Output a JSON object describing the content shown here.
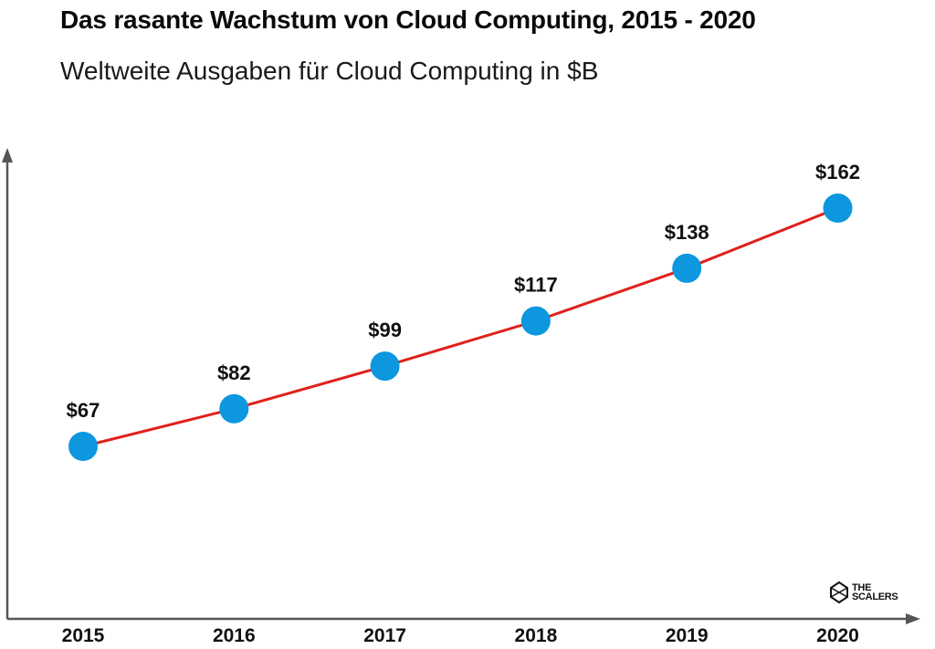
{
  "title": "Das rasante Wachstum von Cloud Computing, 2015 - 2020",
  "subtitle": "Weltweite Ausgaben für Cloud Computing  in $B",
  "logo": {
    "line1": "THE",
    "line2": "SCALERS"
  },
  "colors": {
    "line": "#e0201b",
    "marker": "#0c97df",
    "axis": "#555555"
  },
  "chart_data": {
    "type": "line",
    "title": "Das rasante Wachstum von Cloud Computing, 2015 - 2020",
    "subtitle": "Weltweite Ausgaben für Cloud Computing  in $B",
    "categories": [
      "2015",
      "2016",
      "2017",
      "2018",
      "2019",
      "2020"
    ],
    "values": [
      67,
      82,
      99,
      117,
      138,
      162
    ],
    "labels": [
      "$67",
      "$82",
      "$99",
      "$117",
      "$138",
      "$162"
    ],
    "xlabel": "",
    "ylabel": "",
    "grid": false
  }
}
